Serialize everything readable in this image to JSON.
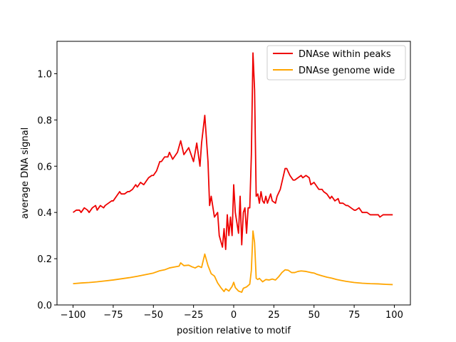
{
  "chart_data": {
    "type": "line",
    "title": "",
    "xlabel": "position relative to motif",
    "ylabel": "average DNA signal",
    "xlim": [
      -110,
      110
    ],
    "ylim": [
      0.0,
      1.14
    ],
    "xticks": [
      -100,
      -75,
      -50,
      -25,
      0,
      25,
      50,
      75,
      100
    ],
    "xtick_labels": [
      "−100",
      "−75",
      "−50",
      "−25",
      "0",
      "25",
      "50",
      "75",
      "100"
    ],
    "yticks": [
      0.0,
      0.2,
      0.4,
      0.6,
      0.8,
      1.0
    ],
    "ytick_labels": [
      "0.0",
      "0.2",
      "0.4",
      "0.6",
      "0.8",
      "1.0"
    ],
    "grid": false,
    "legend_position": "top-right",
    "series": [
      {
        "name": "DNAse within peaks",
        "color": "#ee0000",
        "points": [
          [
            -100,
            0.4
          ],
          [
            -98,
            0.41
          ],
          [
            -96,
            0.41
          ],
          [
            -95,
            0.4
          ],
          [
            -93,
            0.42
          ],
          [
            -91,
            0.41
          ],
          [
            -90,
            0.4
          ],
          [
            -88,
            0.42
          ],
          [
            -86,
            0.43
          ],
          [
            -85,
            0.41
          ],
          [
            -83,
            0.43
          ],
          [
            -81,
            0.42
          ],
          [
            -80,
            0.43
          ],
          [
            -78,
            0.44
          ],
          [
            -76,
            0.45
          ],
          [
            -75,
            0.45
          ],
          [
            -73,
            0.47
          ],
          [
            -71,
            0.49
          ],
          [
            -70,
            0.48
          ],
          [
            -68,
            0.48
          ],
          [
            -66,
            0.49
          ],
          [
            -65,
            0.49
          ],
          [
            -63,
            0.5
          ],
          [
            -61,
            0.52
          ],
          [
            -60,
            0.51
          ],
          [
            -58,
            0.53
          ],
          [
            -56,
            0.52
          ],
          [
            -55,
            0.53
          ],
          [
            -53,
            0.55
          ],
          [
            -51,
            0.56
          ],
          [
            -50,
            0.56
          ],
          [
            -48,
            0.58
          ],
          [
            -46,
            0.62
          ],
          [
            -45,
            0.62
          ],
          [
            -43,
            0.64
          ],
          [
            -41,
            0.64
          ],
          [
            -40,
            0.66
          ],
          [
            -38,
            0.63
          ],
          [
            -36,
            0.65
          ],
          [
            -35,
            0.66
          ],
          [
            -33,
            0.71
          ],
          [
            -31,
            0.65
          ],
          [
            -30,
            0.66
          ],
          [
            -28,
            0.68
          ],
          [
            -26,
            0.64
          ],
          [
            -25,
            0.62
          ],
          [
            -23,
            0.7
          ],
          [
            -21,
            0.6
          ],
          [
            -20,
            0.7
          ],
          [
            -18,
            0.82
          ],
          [
            -16,
            0.62
          ],
          [
            -15,
            0.43
          ],
          [
            -14,
            0.47
          ],
          [
            -12,
            0.38
          ],
          [
            -10,
            0.4
          ],
          [
            -9,
            0.3
          ],
          [
            -7,
            0.25
          ],
          [
            -6,
            0.33
          ],
          [
            -5,
            0.24
          ],
          [
            -4,
            0.39
          ],
          [
            -3,
            0.3
          ],
          [
            -2,
            0.38
          ],
          [
            -1,
            0.3
          ],
          [
            0,
            0.52
          ],
          [
            1,
            0.4
          ],
          [
            3,
            0.31
          ],
          [
            4,
            0.47
          ],
          [
            5,
            0.26
          ],
          [
            6,
            0.4
          ],
          [
            7,
            0.42
          ],
          [
            8,
            0.31
          ],
          [
            9,
            0.42
          ],
          [
            10,
            0.42
          ],
          [
            11,
            0.65
          ],
          [
            12,
            1.09
          ],
          [
            13,
            0.93
          ],
          [
            14,
            0.47
          ],
          [
            15,
            0.48
          ],
          [
            16,
            0.44
          ],
          [
            17,
            0.49
          ],
          [
            18,
            0.45
          ],
          [
            19,
            0.44
          ],
          [
            20,
            0.47
          ],
          [
            21,
            0.44
          ],
          [
            23,
            0.48
          ],
          [
            24,
            0.45
          ],
          [
            26,
            0.44
          ],
          [
            27,
            0.47
          ],
          [
            29,
            0.5
          ],
          [
            30,
            0.53
          ],
          [
            32,
            0.59
          ],
          [
            33,
            0.59
          ],
          [
            35,
            0.56
          ],
          [
            37,
            0.54
          ],
          [
            38,
            0.54
          ],
          [
            40,
            0.55
          ],
          [
            42,
            0.56
          ],
          [
            43,
            0.55
          ],
          [
            45,
            0.56
          ],
          [
            47,
            0.55
          ],
          [
            48,
            0.52
          ],
          [
            50,
            0.53
          ],
          [
            51,
            0.52
          ],
          [
            53,
            0.5
          ],
          [
            55,
            0.5
          ],
          [
            56,
            0.49
          ],
          [
            58,
            0.48
          ],
          [
            60,
            0.46
          ],
          [
            61,
            0.47
          ],
          [
            63,
            0.45
          ],
          [
            65,
            0.46
          ],
          [
            66,
            0.44
          ],
          [
            68,
            0.44
          ],
          [
            70,
            0.43
          ],
          [
            71,
            0.43
          ],
          [
            73,
            0.42
          ],
          [
            75,
            0.41
          ],
          [
            76,
            0.41
          ],
          [
            78,
            0.42
          ],
          [
            80,
            0.4
          ],
          [
            81,
            0.4
          ],
          [
            83,
            0.4
          ],
          [
            85,
            0.39
          ],
          [
            86,
            0.39
          ],
          [
            88,
            0.39
          ],
          [
            90,
            0.39
          ],
          [
            91,
            0.38
          ],
          [
            93,
            0.39
          ],
          [
            95,
            0.39
          ],
          [
            96,
            0.39
          ],
          [
            98,
            0.39
          ],
          [
            99,
            0.39
          ]
        ]
      },
      {
        "name": "DNAse genome wide",
        "color": "#ffa500",
        "points": [
          [
            -100,
            0.092
          ],
          [
            -95,
            0.095
          ],
          [
            -90,
            0.097
          ],
          [
            -85,
            0.1
          ],
          [
            -80,
            0.104
          ],
          [
            -75,
            0.108
          ],
          [
            -70,
            0.113
          ],
          [
            -65,
            0.118
          ],
          [
            -60,
            0.124
          ],
          [
            -55,
            0.131
          ],
          [
            -50,
            0.138
          ],
          [
            -46,
            0.148
          ],
          [
            -43,
            0.152
          ],
          [
            -40,
            0.16
          ],
          [
            -37,
            0.164
          ],
          [
            -34,
            0.168
          ],
          [
            -33,
            0.182
          ],
          [
            -31,
            0.17
          ],
          [
            -28,
            0.172
          ],
          [
            -26,
            0.165
          ],
          [
            -24,
            0.16
          ],
          [
            -22,
            0.168
          ],
          [
            -20,
            0.162
          ],
          [
            -18,
            0.22
          ],
          [
            -16,
            0.17
          ],
          [
            -14,
            0.135
          ],
          [
            -12,
            0.125
          ],
          [
            -10,
            0.095
          ],
          [
            -8,
            0.075
          ],
          [
            -6,
            0.058
          ],
          [
            -5,
            0.07
          ],
          [
            -3,
            0.06
          ],
          [
            -1,
            0.08
          ],
          [
            0,
            0.098
          ],
          [
            1,
            0.075
          ],
          [
            3,
            0.06
          ],
          [
            5,
            0.055
          ],
          [
            6,
            0.072
          ],
          [
            8,
            0.078
          ],
          [
            10,
            0.09
          ],
          [
            11,
            0.15
          ],
          [
            12,
            0.32
          ],
          [
            13,
            0.27
          ],
          [
            14,
            0.115
          ],
          [
            15,
            0.11
          ],
          [
            16,
            0.115
          ],
          [
            18,
            0.1
          ],
          [
            20,
            0.11
          ],
          [
            22,
            0.108
          ],
          [
            24,
            0.112
          ],
          [
            26,
            0.108
          ],
          [
            28,
            0.122
          ],
          [
            30,
            0.14
          ],
          [
            32,
            0.152
          ],
          [
            34,
            0.15
          ],
          [
            36,
            0.14
          ],
          [
            38,
            0.14
          ],
          [
            40,
            0.145
          ],
          [
            42,
            0.147
          ],
          [
            45,
            0.145
          ],
          [
            48,
            0.14
          ],
          [
            50,
            0.138
          ],
          [
            52,
            0.132
          ],
          [
            55,
            0.126
          ],
          [
            58,
            0.12
          ],
          [
            61,
            0.116
          ],
          [
            64,
            0.11
          ],
          [
            67,
            0.106
          ],
          [
            70,
            0.102
          ],
          [
            75,
            0.097
          ],
          [
            80,
            0.094
          ],
          [
            85,
            0.092
          ],
          [
            90,
            0.091
          ],
          [
            95,
            0.089
          ],
          [
            99,
            0.088
          ]
        ]
      }
    ]
  }
}
